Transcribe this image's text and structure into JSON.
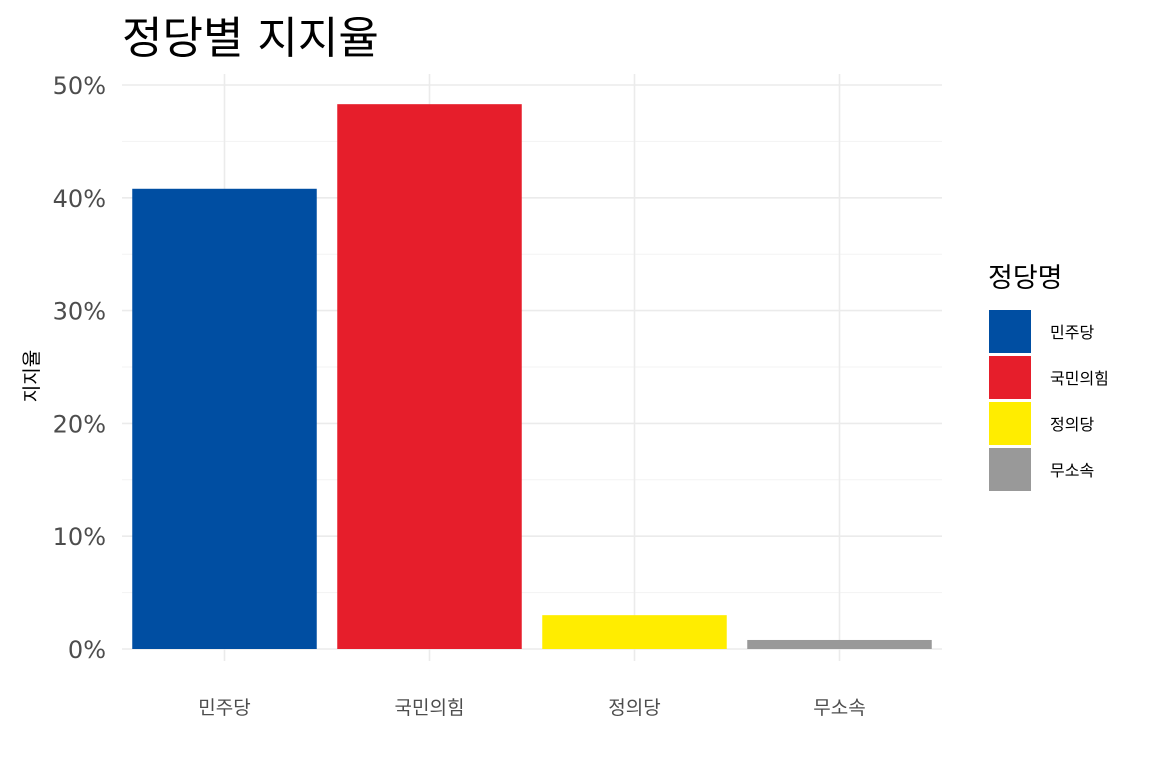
{
  "chart_data": {
    "type": "bar",
    "title": "정당별 지지율",
    "xlabel": "",
    "ylabel": "지지율",
    "categories": [
      "민주당",
      "국민의힘",
      "정의당",
      "무소속"
    ],
    "values": [
      40.8,
      48.3,
      3.0,
      0.8
    ],
    "colors": [
      "#004EA2",
      "#E61E2B",
      "#FFED00",
      "#999999"
    ],
    "ylim": [
      0,
      50
    ],
    "yticks": [
      0,
      10,
      20,
      30,
      40,
      50
    ],
    "ytick_labels": [
      "0%",
      "10%",
      "20%",
      "30%",
      "40%",
      "50%"
    ],
    "grid": true,
    "legend": {
      "title": "정당명",
      "position": "right",
      "entries": [
        "민주당",
        "국민의힘",
        "정의당",
        "무소속"
      ]
    }
  }
}
